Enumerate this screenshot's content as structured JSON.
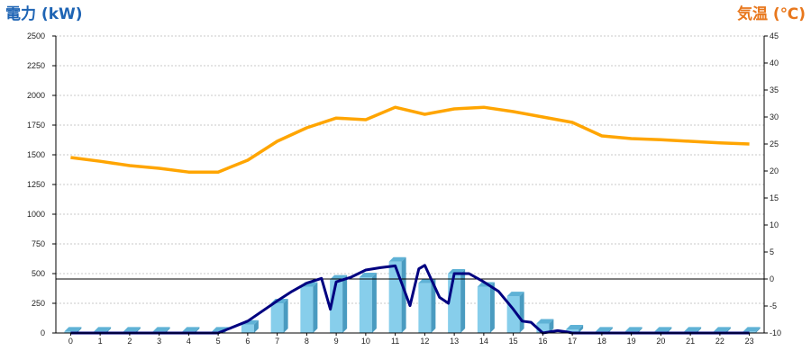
{
  "chart_data": {
    "type": "bar",
    "left_axis_title": "電力 (kW)",
    "right_axis_title": "気温 (℃)",
    "categories": [
      "0",
      "1",
      "2",
      "3",
      "4",
      "5",
      "6",
      "7",
      "8",
      "9",
      "10",
      "11",
      "12",
      "13",
      "14",
      "15",
      "16",
      "17",
      "18",
      "19",
      "20",
      "21",
      "22",
      "23"
    ],
    "left_ylim": [
      0,
      2500
    ],
    "left_ticks": [
      "0",
      "250",
      "500",
      "750",
      "1000",
      "1250",
      "1500",
      "1750",
      "2000",
      "2250",
      "2500"
    ],
    "right_ylim": [
      -10,
      45
    ],
    "right_ticks": [
      "-10",
      "-5",
      "0",
      "5",
      "10",
      "15",
      "20",
      "25",
      "30",
      "35",
      "40",
      "45"
    ],
    "grid": true,
    "reference_line": {
      "axis": "right",
      "value": 0
    },
    "bars": {
      "axis": "left",
      "color": "#87ceeb",
      "values": [
        12,
        12,
        12,
        12,
        12,
        12,
        70,
        250,
        390,
        450,
        470,
        600,
        420,
        500,
        390,
        310,
        80,
        30,
        12,
        12,
        12,
        12,
        12,
        12
      ]
    },
    "power_line": {
      "axis": "left",
      "color": "#000080",
      "x": [
        0,
        1,
        2,
        3,
        4,
        5,
        6,
        7,
        7.5,
        8,
        8.5,
        8.8,
        9,
        9.5,
        10,
        10.5,
        11,
        11.5,
        11.8,
        12,
        12.5,
        12.8,
        13,
        13.5,
        14,
        14.5,
        15,
        15.3,
        15.6,
        16,
        16.5,
        16.8,
        17,
        17.5,
        18,
        19,
        20,
        21,
        22,
        23
      ],
      "values": [
        0,
        0,
        0,
        0,
        0,
        0,
        100,
        270,
        350,
        420,
        460,
        200,
        430,
        470,
        530,
        550,
        565,
        230,
        540,
        570,
        300,
        250,
        500,
        500,
        430,
        350,
        200,
        100,
        90,
        0,
        20,
        10,
        0,
        0,
        0,
        0,
        0,
        0,
        0,
        0
      ]
    },
    "temperature_line": {
      "axis": "right",
      "color": "#ffa500",
      "x": [
        0,
        1,
        2,
        3,
        4,
        5,
        6,
        7,
        8,
        9,
        10,
        11,
        12,
        13,
        14,
        15,
        16,
        17,
        18,
        19,
        20,
        21,
        22,
        23
      ],
      "values": [
        22.5,
        21.8,
        21,
        20.5,
        19.8,
        19.8,
        22,
        25.5,
        28,
        29.8,
        29.5,
        31.8,
        30.5,
        31.5,
        31.8,
        31,
        30,
        29,
        26.5,
        26,
        25.8,
        25.5,
        25.2,
        25
      ]
    }
  },
  "colors": {
    "left_title": "#1e64b4",
    "right_title": "#e8771c",
    "grid": "#c8c8c8",
    "axis": "#000000"
  }
}
